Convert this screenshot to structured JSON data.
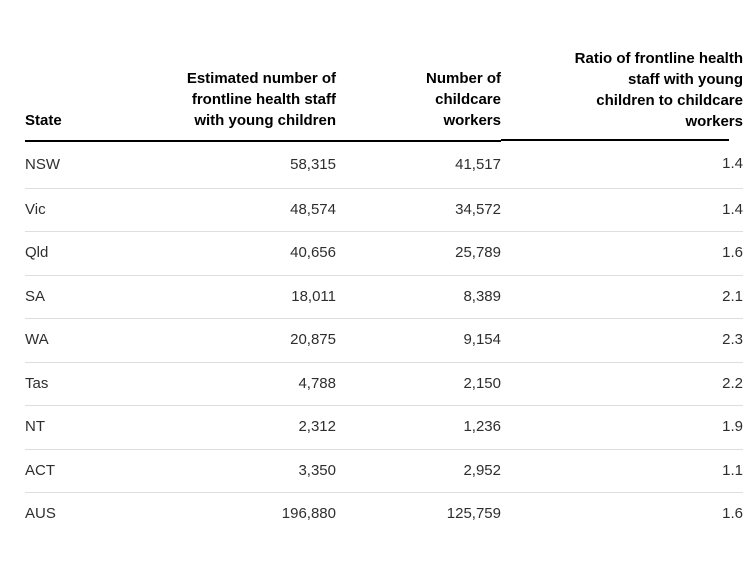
{
  "page": {
    "background": "#ffffff",
    "colors": {
      "header_text": "#000000",
      "body_text": "#2e2e2e",
      "header_rule": "#000000",
      "row_divider": "#dedede"
    }
  },
  "chart_data": {
    "type": "table",
    "layout": {
      "header_rule": "2px solid black, stops short of right edge",
      "row_dividers": "1px light gray, none after last row",
      "column_aligns": [
        "left",
        "right",
        "right",
        "right"
      ]
    },
    "columns": [
      {
        "id": "state",
        "label": "State"
      },
      {
        "id": "health_staff",
        "label": "Estimated number of\nfrontline health staff\nwith young children"
      },
      {
        "id": "childcare_workers",
        "label": "Number of\nchildcare\nworkers"
      },
      {
        "id": "ratio",
        "label": "Ratio of frontline health\nstaff with young\nchildren to childcare\nworkers"
      }
    ],
    "rows": [
      {
        "state": "NSW",
        "health_staff": "58,315",
        "childcare_workers": "41,517",
        "ratio": "1.4"
      },
      {
        "state": "Vic",
        "health_staff": "48,574",
        "childcare_workers": "34,572",
        "ratio": "1.4"
      },
      {
        "state": "Qld",
        "health_staff": "40,656",
        "childcare_workers": "25,789",
        "ratio": "1.6"
      },
      {
        "state": "SA",
        "health_staff": "18,011",
        "childcare_workers": "8,389",
        "ratio": "2.1"
      },
      {
        "state": "WA",
        "health_staff": "20,875",
        "childcare_workers": "9,154",
        "ratio": "2.3"
      },
      {
        "state": "Tas",
        "health_staff": "4,788",
        "childcare_workers": "2,150",
        "ratio": "2.2"
      },
      {
        "state": "NT",
        "health_staff": "2,312",
        "childcare_workers": "1,236",
        "ratio": "1.9"
      },
      {
        "state": "ACT",
        "health_staff": "3,350",
        "childcare_workers": "2,952",
        "ratio": "1.1"
      },
      {
        "state": "AUS",
        "health_staff": "196,880",
        "childcare_workers": "125,759",
        "ratio": "1.6"
      }
    ]
  }
}
